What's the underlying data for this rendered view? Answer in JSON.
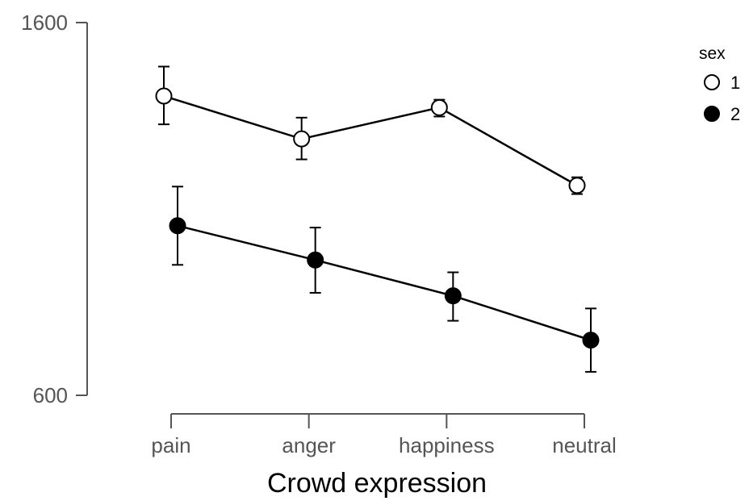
{
  "chart_data": {
    "type": "line",
    "title": "",
    "xlabel": "Crowd expression",
    "ylabel": "",
    "categories": [
      "pain",
      "anger",
      "happiness",
      "neutral"
    ],
    "ylim": [
      600,
      1600
    ],
    "yticks": [
      600,
      1600
    ],
    "grid": false,
    "legend": {
      "title": "sex",
      "placement": "top-right"
    },
    "series": [
      {
        "name": "1",
        "marker": "open-circle",
        "color": "#000000",
        "fill": "#ffffff",
        "values": [
          1403,
          1288,
          1372,
          1163
        ],
        "err_low": [
          1327,
          1233,
          1348,
          1140
        ],
        "err_high": [
          1482,
          1345,
          1393,
          1185
        ]
      },
      {
        "name": "2",
        "marker": "filled-circle",
        "color": "#000000",
        "fill": "#000000",
        "values": [
          1055,
          963,
          867,
          748
        ],
        "err_low": [
          950,
          875,
          800,
          663
        ],
        "err_high": [
          1160,
          1050,
          930,
          833
        ]
      }
    ]
  }
}
